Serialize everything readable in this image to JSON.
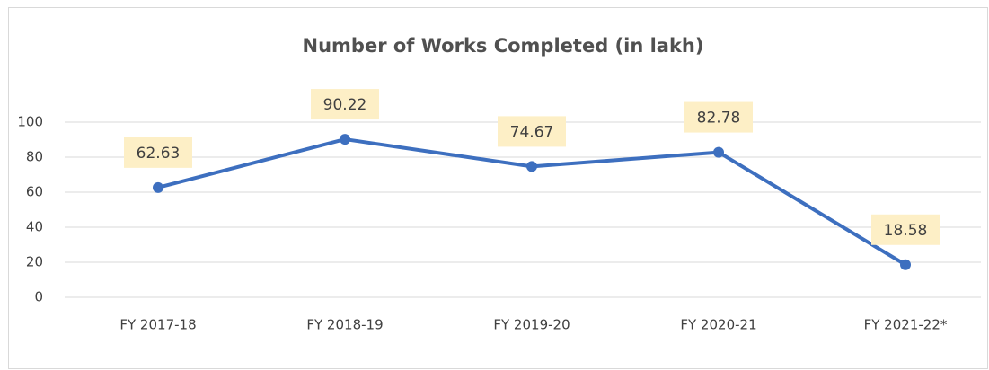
{
  "chart_data": {
    "type": "line",
    "title": "Number of Works Completed  (in lakh)",
    "categories": [
      "FY 2017-18",
      "FY 2018-19",
      "FY 2019-20",
      "FY 2020-21",
      "FY 2021-22*"
    ],
    "series": [
      {
        "name": "Number of Works Completed",
        "color": "#3d6fbf",
        "values": [
          62.63,
          90.22,
          74.67,
          82.78,
          18.58
        ]
      }
    ],
    "ylim": [
      0,
      100
    ],
    "yticks": [
      0,
      20,
      40,
      60,
      80,
      100
    ],
    "grid": true
  }
}
